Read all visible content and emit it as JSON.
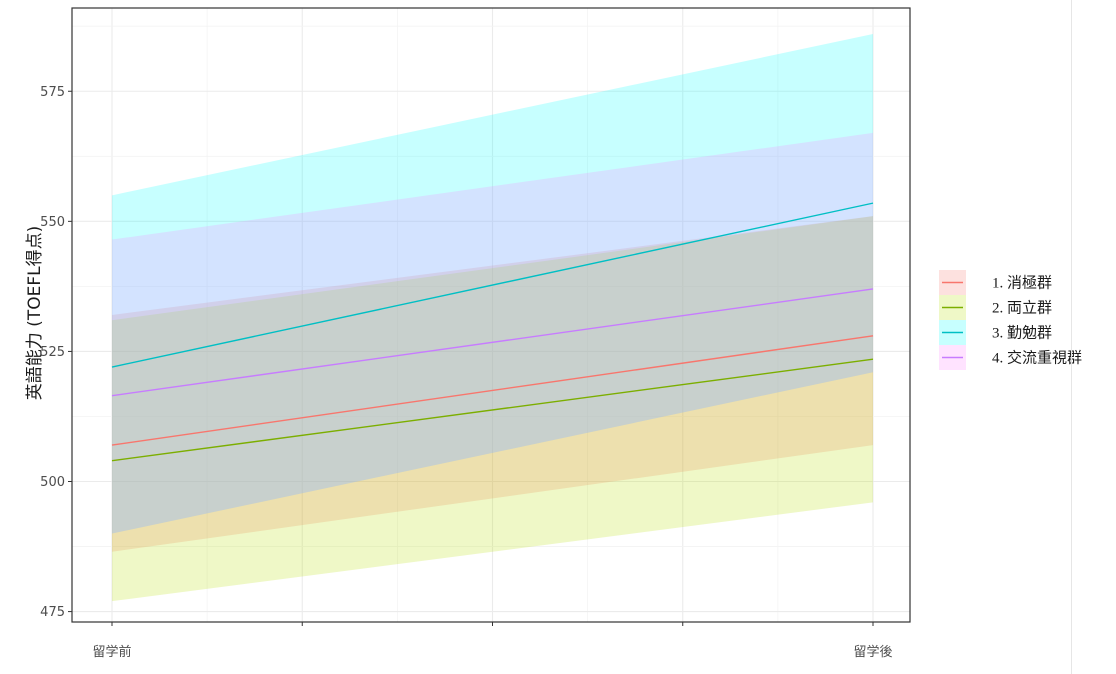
{
  "chart_data": {
    "type": "line",
    "title": "",
    "xlabel": "",
    "ylabel": "英語能力 (TOEFL得点)",
    "categories": [
      "留学前",
      "留学後"
    ],
    "ylim": [
      473,
      591
    ],
    "y_ticks": [
      475,
      500,
      525,
      550,
      575
    ],
    "grid": true,
    "legend_position": "right",
    "series": [
      {
        "name": "1. 消極群",
        "line_color": "#F8766D",
        "fill_color": "#F8766D",
        "values": [
          507,
          528
        ],
        "lower": [
          486.5,
          507
        ],
        "upper": [
          532,
          551
        ]
      },
      {
        "name": "2. 両立群",
        "line_color": "#7CAE00",
        "fill_color": "#B5E000",
        "values": [
          504,
          523.5
        ],
        "lower": [
          477,
          496
        ],
        "upper": [
          531,
          551
        ]
      },
      {
        "name": "3. 勤勉群",
        "line_color": "#00BFC4",
        "fill_color": "#00FFFF",
        "values": [
          522,
          553.5
        ],
        "lower": [
          490,
          521
        ],
        "upper": [
          555,
          586
        ]
      },
      {
        "name": "4. 交流重視群",
        "line_color": "#C77CFF",
        "fill_color": "#FF80FF",
        "values": [
          516.5,
          537
        ],
        "lower": [
          490,
          521
        ],
        "upper": [
          546.5,
          567
        ]
      }
    ]
  }
}
